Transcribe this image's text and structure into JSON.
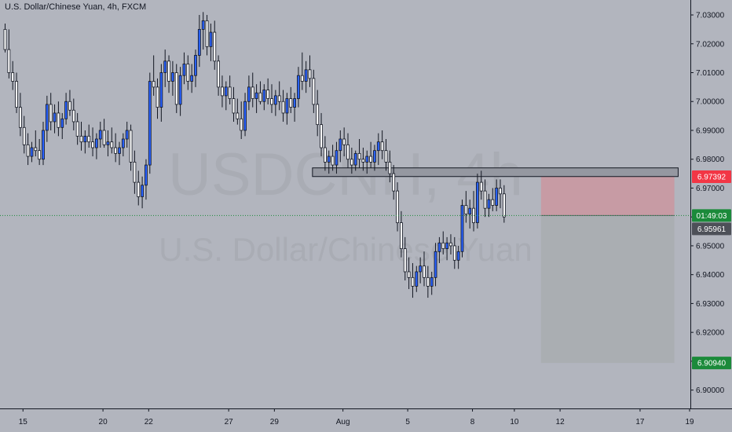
{
  "title": "U.S. Dollar/Chinese Yuan, 4h, FXCM",
  "watermark": {
    "symbol": "USDCNH, 4h",
    "name": "U.S. Dollar/Chinese Yuan"
  },
  "colors": {
    "background": "#b2b5be",
    "up_candle": "#2962ff",
    "down_candle": "#ffffff",
    "wick": "#131722",
    "stop_zone": "#c89aa2",
    "target_zone": "#a8adb0",
    "resistance": "#9598a1",
    "stop_tag": "#f23645",
    "target_tag": "#1b8a3a",
    "last_price_tag": "#4d5058",
    "current_line_tag": "#1b8a3a"
  },
  "price_tags": {
    "stop": "6.97392",
    "current_time": "01:49:03",
    "last": "6.95961",
    "target": "6.90940"
  },
  "chart_data": {
    "type": "candlestick",
    "title": "U.S. Dollar/Chinese Yuan, 4h, FXCM",
    "y_axis": {
      "min": 6.895,
      "max": 7.033,
      "ticks": [
        "6.90000",
        "6.91000",
        "6.92000",
        "6.93000",
        "6.94000",
        "6.95000",
        "6.96000",
        "6.97000",
        "6.98000",
        "6.99000",
        "7.00000",
        "7.01000",
        "7.02000",
        "7.03000"
      ]
    },
    "x_axis": {
      "ticks": [
        {
          "label": "15",
          "index": 5
        },
        {
          "label": "20",
          "index": 26
        },
        {
          "label": "22",
          "index": 38
        },
        {
          "label": "27",
          "index": 59
        },
        {
          "label": "29",
          "index": 71
        },
        {
          "label": "Aug",
          "index": 89
        },
        {
          "label": "5",
          "index": 106
        },
        {
          "label": "8",
          "index": 123
        },
        {
          "label": "10",
          "index": 134
        },
        {
          "label": "12",
          "index": 146
        },
        {
          "label": "17",
          "index": 167
        },
        {
          "label": "19",
          "index": 180
        }
      ]
    },
    "candles": [
      [
        7.025,
        7.027,
        7.017,
        7.018
      ],
      [
        7.018,
        7.025,
        7.008,
        7.01
      ],
      [
        7.01,
        7.014,
        7.004,
        7.007
      ],
      [
        7.007,
        7.01,
        6.996,
        6.998
      ],
      [
        6.998,
        7.003,
        6.988,
        6.991
      ],
      [
        6.991,
        6.995,
        6.982,
        6.985
      ],
      [
        6.985,
        6.989,
        6.978,
        6.981
      ],
      [
        6.981,
        6.986,
        6.979,
        6.984
      ],
      [
        6.984,
        6.99,
        6.981,
        6.983
      ],
      [
        6.983,
        6.987,
        6.978,
        6.98
      ],
      [
        6.98,
        6.993,
        6.978,
        6.99
      ],
      [
        6.99,
        7.002,
        6.986,
        6.999
      ],
      [
        6.999,
        7.003,
        6.99,
        6.993
      ],
      [
        6.993,
        6.999,
        6.989,
        6.996
      ],
      [
        6.996,
        7.0,
        6.988,
        6.991
      ],
      [
        6.991,
        6.996,
        6.987,
        6.994
      ],
      [
        6.994,
        7.003,
        6.992,
        7.0
      ],
      [
        7.0,
        7.004,
        6.995,
        6.997
      ],
      [
        6.997,
        7.001,
        6.99,
        6.993
      ],
      [
        6.993,
        6.996,
        6.985,
        6.988
      ],
      [
        6.988,
        6.993,
        6.983,
        6.986
      ],
      [
        6.986,
        6.99,
        6.982,
        6.988
      ],
      [
        6.988,
        6.992,
        6.984,
        6.986
      ],
      [
        6.986,
        6.991,
        6.981,
        6.984
      ],
      [
        6.984,
        6.989,
        6.98,
        6.987
      ],
      [
        6.987,
        6.993,
        6.984,
        6.99
      ],
      [
        6.99,
        6.994,
        6.984,
        6.985
      ],
      [
        6.985,
        6.99,
        6.981,
        6.986
      ],
      [
        6.986,
        6.991,
        6.982,
        6.984
      ],
      [
        6.984,
        6.989,
        6.979,
        6.982
      ],
      [
        6.982,
        6.986,
        6.978,
        6.984
      ],
      [
        6.984,
        6.989,
        6.981,
        6.987
      ],
      [
        6.987,
        6.993,
        6.984,
        6.99
      ],
      [
        6.99,
        6.992,
        6.976,
        6.979
      ],
      [
        6.979,
        6.983,
        6.968,
        6.972
      ],
      [
        6.972,
        6.976,
        6.964,
        6.967
      ],
      [
        6.967,
        6.974,
        6.963,
        6.971
      ],
      [
        6.971,
        6.98,
        6.966,
        6.978
      ],
      [
        6.978,
        7.01,
        6.975,
        7.007
      ],
      [
        7.007,
        7.016,
        7.002,
        7.005
      ],
      [
        7.005,
        7.008,
        6.994,
        6.998
      ],
      [
        6.998,
        7.013,
        6.993,
        7.01
      ],
      [
        7.01,
        7.018,
        7.005,
        7.014
      ],
      [
        7.014,
        7.016,
        7.003,
        7.007
      ],
      [
        7.007,
        7.014,
        7.002,
        7.01
      ],
      [
        7.01,
        7.013,
        6.996,
        6.999
      ],
      [
        6.999,
        7.012,
        6.995,
        7.009
      ],
      [
        7.009,
        7.017,
        7.006,
        7.013
      ],
      [
        7.013,
        7.016,
        7.004,
        7.007
      ],
      [
        7.007,
        7.013,
        7.003,
        7.009
      ],
      [
        7.009,
        7.018,
        7.005,
        7.016
      ],
      [
        7.016,
        7.03,
        7.012,
        7.025
      ],
      [
        7.025,
        7.031,
        7.018,
        7.028
      ],
      [
        7.028,
        7.03,
        7.016,
        7.019
      ],
      [
        7.019,
        7.027,
        7.014,
        7.024
      ],
      [
        7.024,
        7.028,
        7.011,
        7.014
      ],
      [
        7.014,
        7.016,
        7.002,
        7.005
      ],
      [
        7.005,
        7.009,
        6.998,
        7.002
      ],
      [
        7.002,
        7.007,
        6.997,
        7.005
      ],
      [
        7.005,
        7.009,
        6.999,
        7.001
      ],
      [
        7.001,
        7.005,
        6.993,
        6.996
      ],
      [
        6.996,
        7.001,
        6.992,
        6.994
      ],
      [
        6.994,
        7.0,
        6.987,
        6.99
      ],
      [
        6.99,
        7.003,
        6.988,
        7.0
      ],
      [
        7.0,
        7.009,
        6.997,
        7.005
      ],
      [
        7.005,
        7.01,
        6.998,
        7.001
      ],
      [
        7.001,
        7.006,
        6.996,
        7.003
      ],
      [
        7.003,
        7.007,
        6.999,
        7.0
      ],
      [
        7.0,
        7.006,
        6.997,
        7.004
      ],
      [
        7.004,
        7.008,
        6.999,
        7.001
      ],
      [
        7.001,
        7.006,
        6.996,
        6.999
      ],
      [
        6.999,
        7.004,
        6.995,
        7.002
      ],
      [
        7.002,
        7.007,
        6.997,
        7.0
      ],
      [
        7.0,
        7.004,
        6.993,
        6.996
      ],
      [
        6.996,
        7.003,
        6.992,
        7.001
      ],
      [
        7.001,
        7.005,
        6.996,
        6.998
      ],
      [
        6.998,
        7.003,
        6.993,
        7.001
      ],
      [
        7.001,
        7.012,
        6.998,
        7.009
      ],
      [
        7.009,
        7.017,
        7.004,
        7.007
      ],
      [
        7.007,
        7.014,
        7.003,
        7.011
      ],
      [
        7.011,
        7.016,
        7.005,
        7.008
      ],
      [
        7.008,
        7.011,
        6.996,
        6.999
      ],
      [
        6.999,
        7.004,
        6.988,
        6.992
      ],
      [
        6.992,
        6.996,
        6.981,
        6.984
      ],
      [
        6.984,
        6.988,
        6.976,
        6.979
      ],
      [
        6.979,
        6.983,
        6.975,
        6.981
      ],
      [
        6.981,
        6.985,
        6.976,
        6.978
      ],
      [
        6.978,
        6.986,
        6.975,
        6.983
      ],
      [
        6.983,
        6.99,
        6.979,
        6.987
      ],
      [
        6.987,
        6.991,
        6.981,
        6.985
      ],
      [
        6.985,
        6.989,
        6.977,
        6.98
      ],
      [
        6.98,
        6.984,
        6.975,
        6.978
      ],
      [
        6.978,
        6.983,
        6.976,
        6.982
      ],
      [
        6.982,
        6.987,
        6.977,
        6.98
      ],
      [
        6.98,
        6.984,
        6.976,
        6.979
      ],
      [
        6.979,
        6.983,
        6.975,
        6.981
      ],
      [
        6.981,
        6.986,
        6.977,
        6.979
      ],
      [
        6.979,
        6.985,
        6.976,
        6.983
      ],
      [
        6.983,
        6.989,
        6.978,
        6.986
      ],
      [
        6.986,
        6.99,
        6.98,
        6.983
      ],
      [
        6.983,
        6.987,
        6.976,
        6.979
      ],
      [
        6.979,
        6.983,
        6.972,
        6.975
      ],
      [
        6.975,
        6.978,
        6.966,
        6.969
      ],
      [
        6.969,
        6.972,
        6.955,
        6.958
      ],
      [
        6.958,
        6.962,
        6.946,
        6.949
      ],
      [
        6.949,
        6.953,
        6.938,
        6.941
      ],
      [
        6.941,
        6.946,
        6.935,
        6.939
      ],
      [
        6.939,
        6.944,
        6.932,
        6.936
      ],
      [
        6.936,
        6.943,
        6.934,
        6.941
      ],
      [
        6.941,
        6.946,
        6.937,
        6.943
      ],
      [
        6.943,
        6.948,
        6.936,
        6.939
      ],
      [
        6.939,
        6.943,
        6.932,
        6.936
      ],
      [
        6.936,
        6.941,
        6.933,
        6.939
      ],
      [
        6.939,
        6.951,
        6.936,
        6.948
      ],
      [
        6.948,
        6.953,
        6.944,
        6.951
      ],
      [
        6.951,
        6.955,
        6.947,
        6.949
      ],
      [
        6.949,
        6.953,
        6.945,
        6.951
      ],
      [
        6.951,
        6.954,
        6.947,
        6.95
      ],
      [
        6.95,
        6.953,
        6.942,
        6.945
      ],
      [
        6.945,
        6.95,
        6.942,
        6.948
      ],
      [
        6.948,
        6.966,
        6.946,
        6.964
      ],
      [
        6.964,
        6.969,
        6.958,
        6.961
      ],
      [
        6.961,
        6.966,
        6.956,
        6.963
      ],
      [
        6.963,
        6.969,
        6.955,
        6.958
      ],
      [
        6.958,
        6.975,
        6.956,
        6.972
      ],
      [
        6.972,
        6.976,
        6.966,
        6.969
      ],
      [
        6.969,
        6.973,
        6.96,
        6.963
      ],
      [
        6.963,
        6.968,
        6.96,
        6.966
      ],
      [
        6.966,
        6.97,
        6.962,
        6.964
      ],
      [
        6.964,
        6.973,
        6.962,
        6.97
      ],
      [
        6.97,
        6.973,
        6.963,
        6.968
      ],
      [
        6.968,
        6.971,
        6.958,
        6.96
      ]
    ],
    "resistance_zone": {
      "from_index": 81,
      "to_index": 177,
      "top": 6.977,
      "bottom": 6.974
    },
    "short_position": {
      "from_index": 141,
      "to_index": 176,
      "entry": 6.9605,
      "stop": 6.97392,
      "target": 6.9094
    },
    "current_price_line": 6.9605
  }
}
